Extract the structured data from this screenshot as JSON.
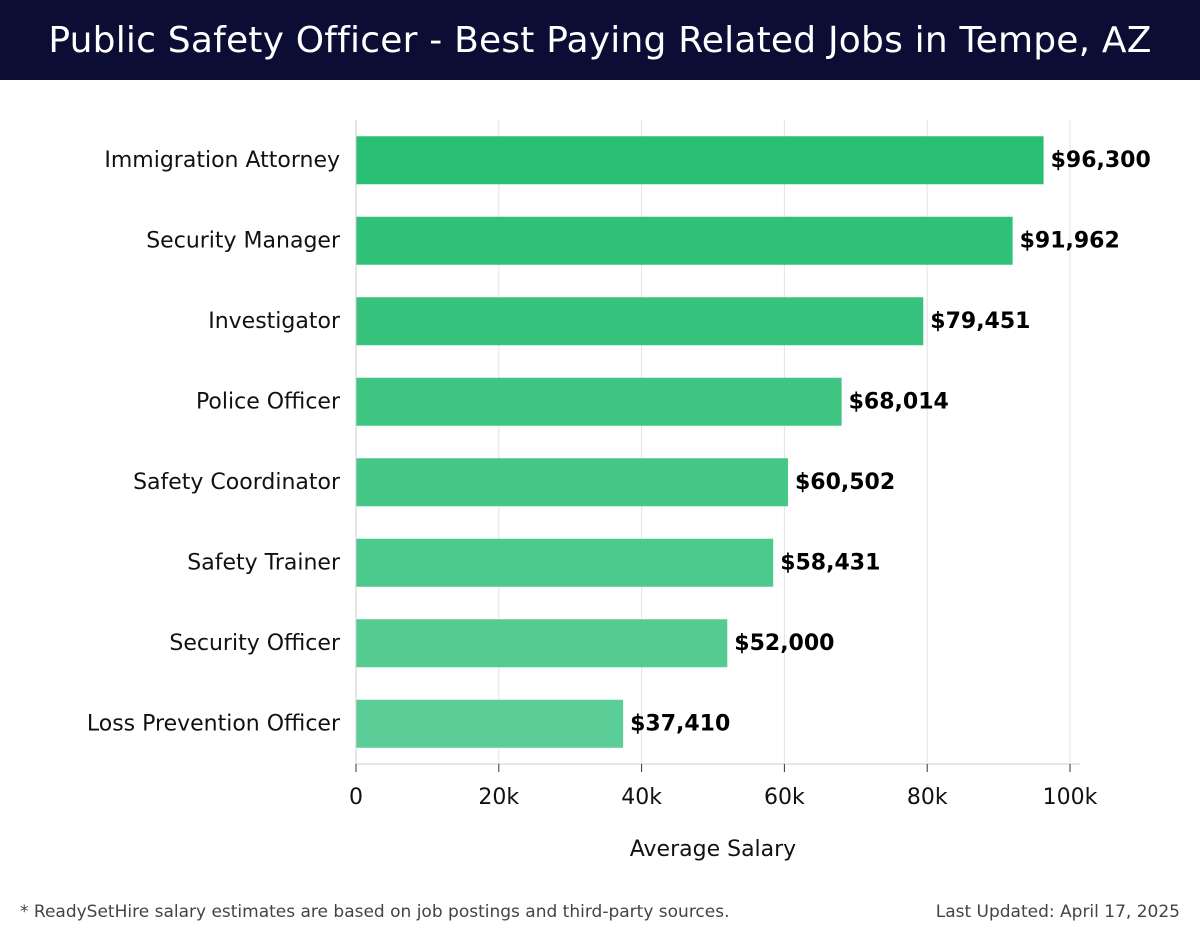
{
  "header": {
    "title": "Public Safety Officer - Best Paying Related Jobs in Tempe, AZ"
  },
  "chart_data": {
    "type": "bar",
    "orientation": "horizontal",
    "categories": [
      "Immigration Attorney",
      "Security Manager",
      "Investigator",
      "Police Officer",
      "Safety Coordinator",
      "Safety Trainer",
      "Security Officer",
      "Loss Prevention Officer"
    ],
    "values": [
      96300,
      91962,
      79451,
      68014,
      60502,
      58431,
      52000,
      37410
    ],
    "value_labels": [
      "$96,300",
      "$91,962",
      "$79,451",
      "$68,014",
      "$60,502",
      "$58,431",
      "$52,000",
      "$37,410"
    ],
    "xlabel": "Average Salary",
    "ylabel": "",
    "xlim": [
      0,
      100000
    ],
    "x_ticks": [
      0,
      20000,
      40000,
      60000,
      80000,
      100000
    ],
    "x_tick_labels": [
      "0",
      "20k",
      "40k",
      "60k",
      "80k",
      "100k"
    ],
    "grid": "vertical",
    "bar_color_top": "#28bf73",
    "bar_color_bottom": "#5bcd96",
    "grid_color": "#e3e3e3"
  },
  "footer": {
    "note": "* ReadySetHire salary estimates are based on job postings and third-party sources.",
    "updated": "Last Updated: April 17, 2025"
  }
}
